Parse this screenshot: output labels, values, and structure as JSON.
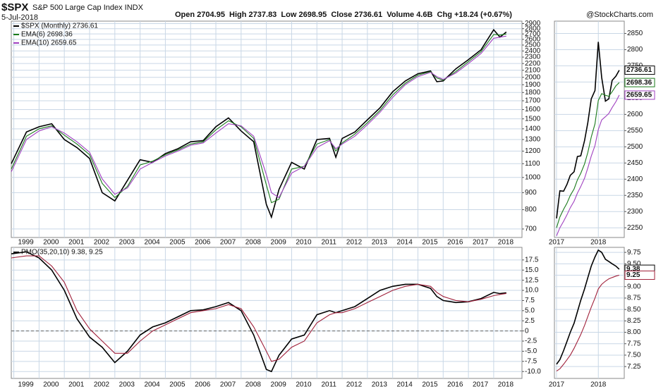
{
  "header": {
    "symbol": "$SPX",
    "name": "S&P 500 Large Cap Index INDX",
    "date": "5-Jul-2018",
    "quote": "Open 2704.95  High 2737.83  Low 2698.95  Close 2736.61  Volume 4.6B  Chg +18.24 (+0.67%)",
    "credit": "@StockCharts.com"
  },
  "chart_data": [
    {
      "type": "line",
      "log": true,
      "grid": true,
      "legend": [
        "$SPX (Monthly) 2736.61",
        "EMA(6) 2698.36",
        "EMA(10) 2659.65"
      ],
      "x": [
        1998.9,
        1999.5,
        2000.0,
        2000.5,
        2001.0,
        2001.5,
        2002.0,
        2002.5,
        2003.0,
        2003.5,
        2004.0,
        2004.5,
        2005.0,
        2005.5,
        2006.0,
        2006.5,
        2007.0,
        2007.5,
        2008.0,
        2008.5,
        2009.0,
        2009.2,
        2009.5,
        2010.0,
        2010.5,
        2011.0,
        2011.5,
        2011.75,
        2012.0,
        2012.5,
        2013.0,
        2013.5,
        2014.0,
        2014.5,
        2015.0,
        2015.5,
        2015.75,
        2016.0,
        2016.5,
        2017.0,
        2017.5,
        2018.0,
        2018.25,
        2018.5
      ],
      "series": [
        {
          "color": "#000000",
          "values": [
            1100,
            1370,
            1420,
            1450,
            1300,
            1230,
            1140,
            900,
            850,
            980,
            1130,
            1110,
            1180,
            1220,
            1280,
            1290,
            1420,
            1510,
            1380,
            1280,
            830,
            760,
            920,
            1110,
            1060,
            1300,
            1310,
            1150,
            1310,
            1370,
            1490,
            1620,
            1810,
            1950,
            2050,
            2090,
            1940,
            1950,
            2120,
            2260,
            2420,
            2780,
            2640,
            2736.61
          ]
        },
        {
          "color": "#1a7a1a",
          "values": [
            1060,
            1330,
            1400,
            1430,
            1340,
            1260,
            1170,
            960,
            870,
            940,
            1090,
            1120,
            1170,
            1210,
            1260,
            1280,
            1390,
            1480,
            1420,
            1310,
            950,
            840,
            860,
            1060,
            1080,
            1260,
            1300,
            1200,
            1270,
            1350,
            1460,
            1590,
            1770,
            1920,
            2030,
            2080,
            1990,
            1960,
            2080,
            2230,
            2390,
            2690,
            2680,
            2698.36
          ]
        },
        {
          "color": "#a040c0",
          "values": [
            1040,
            1300,
            1380,
            1420,
            1360,
            1280,
            1190,
            990,
            890,
            930,
            1060,
            1110,
            1160,
            1200,
            1250,
            1270,
            1360,
            1450,
            1430,
            1330,
            1020,
            900,
            870,
            1030,
            1080,
            1230,
            1290,
            1220,
            1260,
            1330,
            1440,
            1570,
            1740,
            1900,
            2010,
            2070,
            2010,
            1970,
            2060,
            2200,
            2360,
            2620,
            2640,
            2659.65
          ]
        }
      ],
      "xlim": [
        1998.9,
        2019.12
      ],
      "xticks": [
        1999,
        2000,
        2001,
        2002,
        2003,
        2004,
        2005,
        2006,
        2007,
        2008,
        2009,
        2010,
        2011,
        2012,
        2013,
        2014,
        2015,
        2016,
        2017,
        2018
      ],
      "ylim": [
        660,
        2950
      ],
      "yticks": [
        700,
        800,
        900,
        1000,
        1100,
        1200,
        1300,
        1400,
        1500,
        1600,
        1700,
        1800,
        1900,
        2000,
        2100,
        2200,
        2300,
        2400,
        2500,
        2600,
        2700,
        2800,
        2900
      ]
    },
    {
      "type": "line",
      "grid": true,
      "last_value_labels": true,
      "x": [
        2017.0,
        2017.08,
        2017.17,
        2017.25,
        2017.33,
        2017.42,
        2017.5,
        2017.58,
        2017.67,
        2017.75,
        2017.83,
        2017.92,
        2018.0,
        2018.08,
        2018.17,
        2018.25,
        2018.33,
        2018.42,
        2018.5
      ],
      "series": [
        {
          "color": "#000000",
          "values": [
            2279,
            2364,
            2363,
            2384,
            2412,
            2423,
            2470,
            2472,
            2519,
            2575,
            2648,
            2674,
            2824,
            2714,
            2641,
            2648,
            2705,
            2718,
            2736.61
          ]
        },
        {
          "color": "#1a7a1a",
          "values": [
            2250,
            2283,
            2307,
            2326,
            2350,
            2370,
            2398,
            2418,
            2447,
            2483,
            2530,
            2571,
            2643,
            2664,
            2659,
            2656,
            2670,
            2688,
            2698.36
          ]
        },
        {
          "color": "#a040c0",
          "values": [
            2225,
            2250,
            2270,
            2290,
            2312,
            2332,
            2357,
            2377,
            2403,
            2435,
            2471,
            2504,
            2553,
            2583,
            2593,
            2603,
            2621,
            2639,
            2659.65
          ]
        }
      ],
      "xlim": [
        2016.95,
        2018.62
      ],
      "xticks": [
        2017,
        2018
      ],
      "ylim": [
        2220,
        2888
      ],
      "yticks": [
        2250,
        2300,
        2350,
        2400,
        2450,
        2500,
        2550,
        2600,
        2650,
        2700,
        2750,
        2800,
        2850
      ]
    },
    {
      "type": "line",
      "grid": true,
      "hline": 0,
      "legend": [
        "PMO(35,20,10) 9.38, 9.25"
      ],
      "x": [
        1998.9,
        1999.5,
        2000.0,
        2000.5,
        2001.0,
        2001.5,
        2002.0,
        2002.5,
        2003.0,
        2003.5,
        2004.0,
        2004.5,
        2005.0,
        2005.5,
        2006.0,
        2006.5,
        2007.0,
        2007.5,
        2008.0,
        2008.5,
        2009.0,
        2009.2,
        2009.5,
        2010.0,
        2010.5,
        2011.0,
        2011.5,
        2011.75,
        2012.0,
        2012.5,
        2013.0,
        2013.5,
        2014.0,
        2014.5,
        2015.0,
        2015.5,
        2015.75,
        2016.0,
        2016.5,
        2017.0,
        2017.5,
        2018.0,
        2018.25,
        2018.5
      ],
      "series": [
        {
          "color": "#000000",
          "values": [
            19,
            19.5,
            18,
            15,
            10,
            3,
            -1.5,
            -4,
            -7.8,
            -5,
            -1,
            1,
            2,
            3.5,
            5,
            5.2,
            6,
            7,
            5,
            -1,
            -9.5,
            -10,
            -6,
            -2,
            -1,
            4,
            5,
            4.5,
            5,
            6,
            8,
            10,
            11,
            11.5,
            11.5,
            10.5,
            8.5,
            7.5,
            7,
            7.2,
            8,
            9.5,
            9.2,
            9.38
          ]
        },
        {
          "color": "#a0203a",
          "values": [
            18,
            18.5,
            18.5,
            16,
            12,
            5,
            0.5,
            -2.5,
            -5.5,
            -5.5,
            -2.5,
            0,
            1.5,
            3,
            4.5,
            5,
            5.5,
            6.5,
            5.5,
            1,
            -5,
            -7.5,
            -7,
            -4,
            -2.5,
            2,
            4,
            4.5,
            4.5,
            5.5,
            7,
            8.5,
            10,
            11,
            11.5,
            11,
            9.5,
            8.5,
            7.5,
            7.2,
            7.8,
            8.7,
            9,
            9.25
          ]
        }
      ],
      "xlim": [
        1998.9,
        2019.12
      ],
      "xticks": [
        1999,
        2000,
        2001,
        2002,
        2003,
        2004,
        2005,
        2006,
        2007,
        2008,
        2009,
        2010,
        2011,
        2012,
        2013,
        2014,
        2015,
        2016,
        2017,
        2018
      ],
      "ylim": [
        -11.7,
        20.6
      ],
      "yticks": [
        17.5,
        {
          "value": 15,
          "label": "15.0"
        },
        12.5,
        {
          "value": 10,
          "label": "10.0"
        },
        7.5,
        {
          "value": 5,
          "label": "5.0"
        },
        2.5,
        0,
        -2.5,
        {
          "value": -5,
          "label": "-5.0"
        },
        -7.5,
        {
          "value": -10,
          "label": "-10.0"
        }
      ]
    },
    {
      "type": "line",
      "grid": true,
      "last_value_labels": true,
      "x": [
        2017.0,
        2017.08,
        2017.17,
        2017.25,
        2017.33,
        2017.42,
        2017.5,
        2017.58,
        2017.67,
        2017.75,
        2017.83,
        2017.92,
        2018.0,
        2018.08,
        2018.17,
        2018.25,
        2018.33,
        2018.42,
        2018.5
      ],
      "series": [
        {
          "color": "#000000",
          "values": [
            7.3,
            7.4,
            7.6,
            7.8,
            8.0,
            8.2,
            8.45,
            8.7,
            8.95,
            9.2,
            9.45,
            9.65,
            9.8,
            9.75,
            9.6,
            9.55,
            9.5,
            9.45,
            9.38
          ]
        },
        {
          "color": "#a0203a",
          "values": [
            7.15,
            7.2,
            7.3,
            7.4,
            7.5,
            7.65,
            7.8,
            7.95,
            8.15,
            8.35,
            8.55,
            8.75,
            8.95,
            9.05,
            9.12,
            9.17,
            9.2,
            9.23,
            9.25
          ]
        }
      ],
      "xlim": [
        2016.95,
        2018.62
      ],
      "xticks": [
        2017,
        2018
      ],
      "ylim": [
        6.99,
        9.86
      ],
      "yticks": [
        9.75,
        {
          "value": 9.5,
          "label": "9.50"
        },
        9.25,
        {
          "value": 9,
          "label": "9.00"
        },
        8.75,
        {
          "value": 8.5,
          "label": "8.50"
        },
        8.25,
        {
          "value": 8,
          "label": "8.00"
        },
        7.75,
        {
          "value": 7.5,
          "label": "7.50"
        },
        7.25
      ]
    }
  ]
}
